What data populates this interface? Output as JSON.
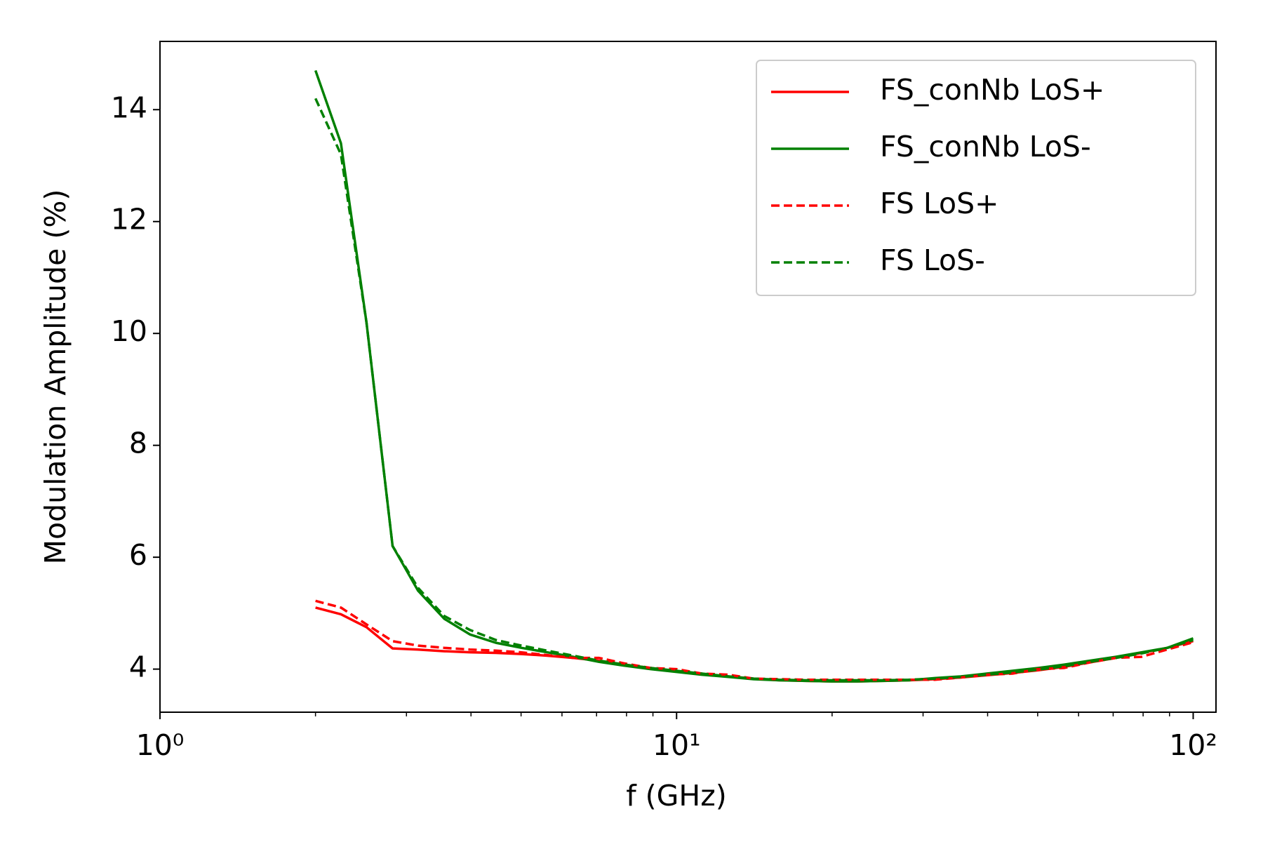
{
  "chart_data": {
    "type": "line",
    "xlabel": "f (GHz)",
    "ylabel": "Modulation Amplitude (%)",
    "xscale": "log",
    "xlim": [
      1,
      110.7
    ],
    "ylim": [
      3.23,
      15.22
    ],
    "xticks": [
      {
        "value": 1,
        "label": "10⁰"
      },
      {
        "value": 10,
        "label": "10¹"
      },
      {
        "value": 100,
        "label": "10²"
      }
    ],
    "xminorticks": [
      2,
      3,
      4,
      5,
      6,
      7,
      8,
      9,
      20,
      30,
      40,
      50,
      60,
      70,
      80,
      90
    ],
    "yticks": [
      4,
      6,
      8,
      10,
      12,
      14
    ],
    "legend": "upper right",
    "x": [
      2.0,
      2.24,
      2.51,
      2.82,
      3.16,
      3.55,
      3.98,
      4.47,
      5.01,
      5.62,
      6.31,
      7.08,
      7.94,
      8.91,
      10.0,
      11.2,
      12.6,
      14.1,
      15.8,
      17.8,
      20.0,
      22.4,
      25.1,
      28.2,
      31.6,
      35.5,
      39.8,
      44.7,
      50.1,
      56.2,
      63.1,
      70.8,
      79.4,
      89.1,
      100
    ],
    "series": [
      {
        "name": "FS_conNb LoS+",
        "color": "#ff0000",
        "dash": false,
        "values": [
          5.1,
          4.98,
          4.75,
          4.37,
          4.35,
          4.32,
          4.3,
          4.29,
          4.27,
          4.24,
          4.2,
          4.15,
          4.08,
          4.02,
          3.96,
          3.91,
          3.87,
          3.83,
          3.8,
          3.79,
          3.78,
          3.78,
          3.79,
          3.8,
          3.82,
          3.85,
          3.89,
          3.93,
          3.98,
          4.04,
          4.12,
          4.2,
          4.29,
          4.38,
          4.5
        ]
      },
      {
        "name": "FS_conNb LoS-",
        "color": "#008000",
        "dash": false,
        "values": [
          14.7,
          13.4,
          10.2,
          6.2,
          5.4,
          4.9,
          4.62,
          4.47,
          4.38,
          4.3,
          4.22,
          4.13,
          4.06,
          4.0,
          3.95,
          3.9,
          3.86,
          3.82,
          3.8,
          3.79,
          3.78,
          3.78,
          3.79,
          3.8,
          3.84,
          3.87,
          3.92,
          3.97,
          4.02,
          4.08,
          4.15,
          4.22,
          4.3,
          4.38,
          4.55
        ]
      },
      {
        "name": "FS LoS+",
        "color": "#ff0000",
        "dash": true,
        "values": [
          5.22,
          5.1,
          4.8,
          4.5,
          4.42,
          4.38,
          4.35,
          4.33,
          4.3,
          4.25,
          4.2,
          4.2,
          4.1,
          4.02,
          4.0,
          3.92,
          3.9,
          3.83,
          3.82,
          3.81,
          3.81,
          3.81,
          3.81,
          3.81,
          3.81,
          3.85,
          3.9,
          3.92,
          4.0,
          4.02,
          4.12,
          4.2,
          4.22,
          4.35,
          4.48
        ]
      },
      {
        "name": "FS LoS-",
        "color": "#008000",
        "dash": true,
        "values": [
          14.2,
          13.2,
          10.2,
          6.2,
          5.45,
          4.95,
          4.7,
          4.52,
          4.42,
          4.33,
          4.24,
          4.15,
          4.08,
          4.02,
          3.97,
          3.92,
          3.87,
          3.83,
          3.81,
          3.8,
          3.8,
          3.8,
          3.8,
          3.81,
          3.83,
          3.86,
          3.9,
          3.94,
          3.99,
          4.05,
          4.13,
          4.2,
          4.28,
          4.38,
          4.52
        ]
      }
    ]
  }
}
